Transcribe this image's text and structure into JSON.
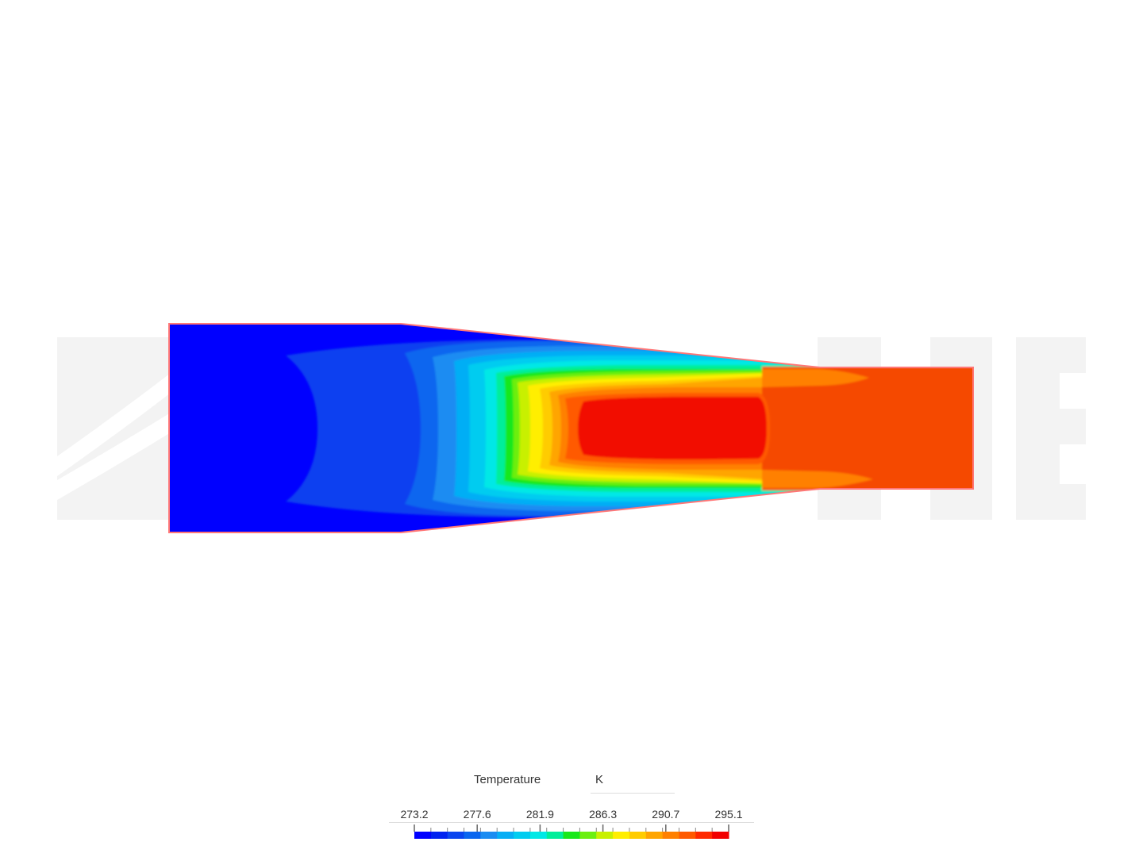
{
  "watermark": {
    "text": "SCALE"
  },
  "legend": {
    "title": "Temperature",
    "unit": "K",
    "min": 273.2,
    "max": 295.1,
    "tick_labels": [
      "273.2",
      "277.6",
      "281.9",
      "286.3",
      "290.7",
      "295.1"
    ],
    "colors": [
      "#0000ff",
      "#0022f0",
      "#0a45ef",
      "#0a66ef",
      "#1a8cf2",
      "#06aef5",
      "#00ccf0",
      "#00e8e6",
      "#00ee9a",
      "#18e81a",
      "#6cef10",
      "#c8f000",
      "#ffee00",
      "#ffcc00",
      "#ffa500",
      "#ff8000",
      "#ff5a00",
      "#ff2a00",
      "#f20000"
    ]
  },
  "colormap": {
    "inlet": "#0000ff",
    "outlet": "#f54a05",
    "core": "#f20b05",
    "outline": "#ff7777"
  }
}
